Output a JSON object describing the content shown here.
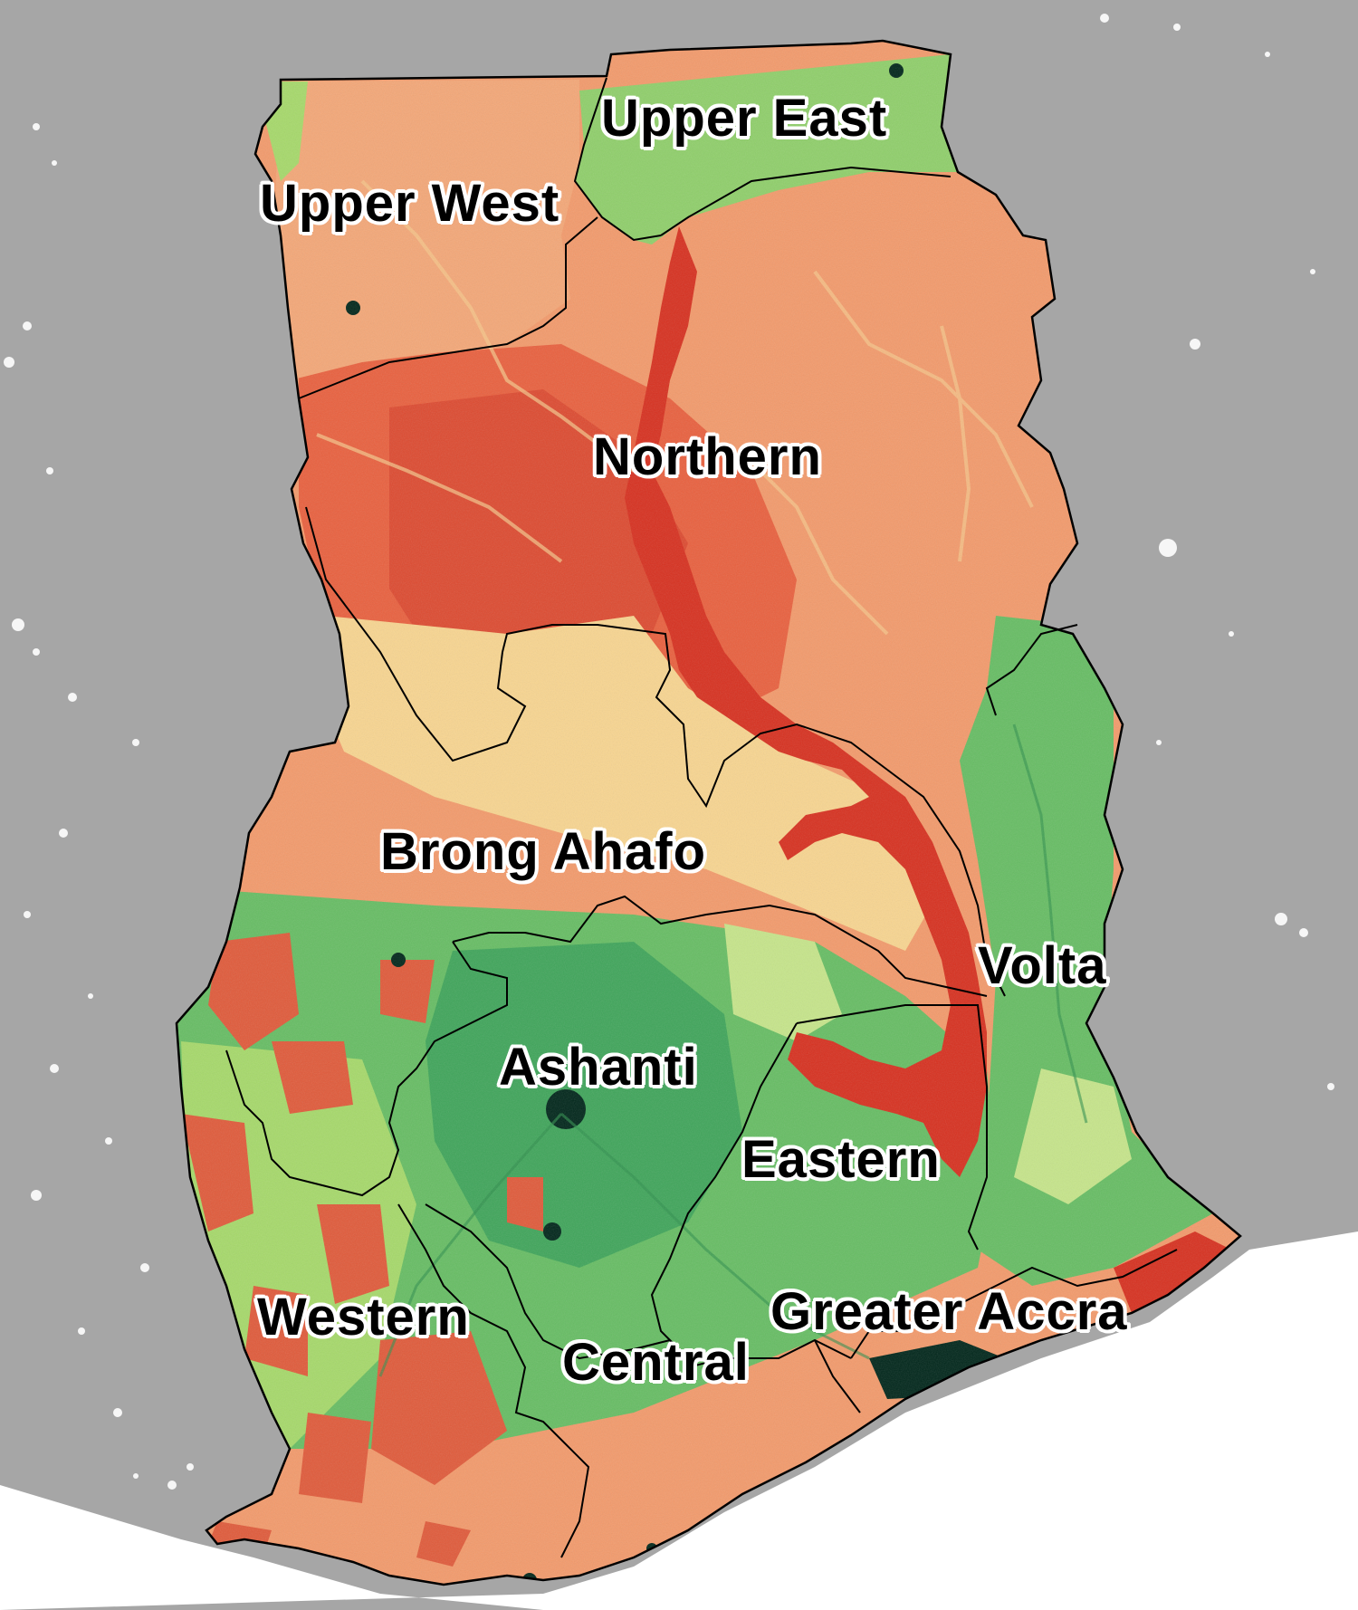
{
  "map": {
    "colors": {
      "background": "#a6a6a6",
      "ocean": "#ffffff",
      "deep_red": "#d7301f",
      "red": "#e9603e",
      "orange": "#f39a6b",
      "light_orange": "#f8bf86",
      "pale": "#f7e79b",
      "light_green": "#a6d96a",
      "green": "#66bd63",
      "dark_green": "#1a9850",
      "urban": "#00261a",
      "border": "#000000"
    },
    "regions": [
      {
        "id": "upper-west",
        "label": "Upper West"
      },
      {
        "id": "upper-east",
        "label": "Upper East"
      },
      {
        "id": "northern",
        "label": "Northern"
      },
      {
        "id": "brong-ahafo",
        "label": "Brong Ahafo"
      },
      {
        "id": "volta",
        "label": "Volta"
      },
      {
        "id": "ashanti",
        "label": "Ashanti"
      },
      {
        "id": "eastern",
        "label": "Eastern"
      },
      {
        "id": "western",
        "label": "Western"
      },
      {
        "id": "greater-accra",
        "label": "Greater Accra"
      },
      {
        "id": "central",
        "label": "Central"
      }
    ]
  }
}
